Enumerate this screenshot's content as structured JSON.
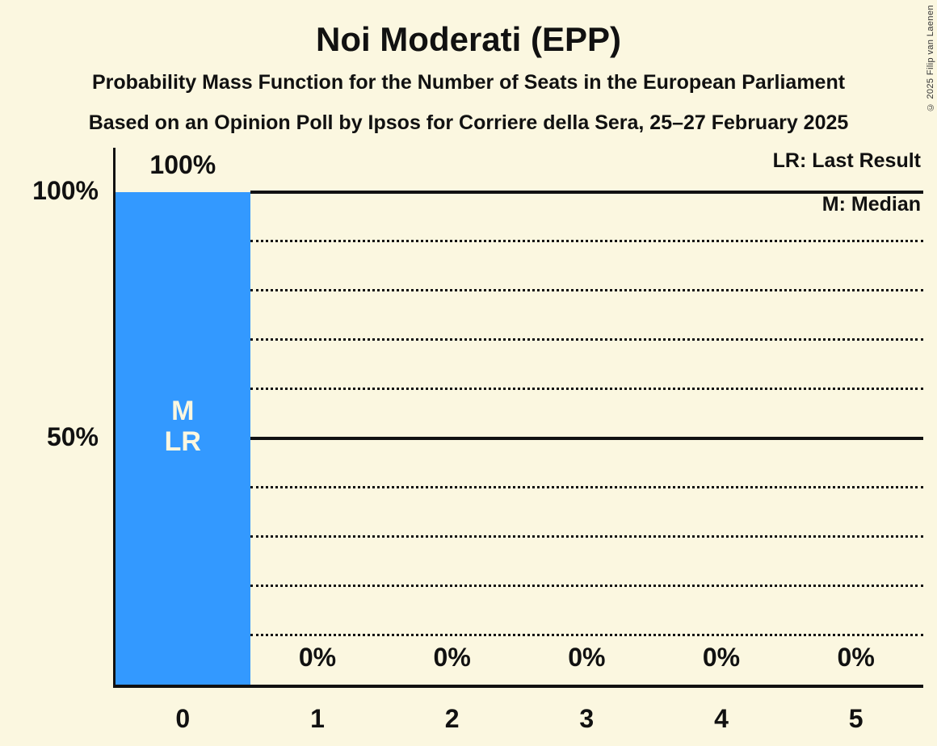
{
  "page": {
    "background_color": "#FBF7E0",
    "text_color": "#111111",
    "copyright": "© 2025 Filip van Laenen"
  },
  "header": {
    "title": "Noi Moderati (EPP)",
    "subtitle1": "Probability Mass Function for the Number of Seats in the European Parliament",
    "subtitle2": "Based on an Opinion Poll by Ipsos for Corriere della Sera, 25–27 February 2025"
  },
  "legend": {
    "lr_label": "LR: Last Result",
    "m_label": "M: Median"
  },
  "chart_data": {
    "type": "bar",
    "title": "Noi Moderati (EPP)",
    "categories": [
      "0",
      "1",
      "2",
      "3",
      "4",
      "5"
    ],
    "values": [
      100,
      0,
      0,
      0,
      0,
      0
    ],
    "value_labels": [
      "100%",
      "0%",
      "0%",
      "0%",
      "0%",
      "0%"
    ],
    "ylim": [
      0,
      100
    ],
    "y_axis_ticks": [
      {
        "level": 100,
        "label": "100%"
      },
      {
        "level": 50,
        "label": "50%"
      }
    ],
    "gridlines": [
      {
        "level": 100,
        "style": "solid"
      },
      {
        "level": 90,
        "style": "dotted"
      },
      {
        "level": 80,
        "style": "dotted"
      },
      {
        "level": 70,
        "style": "dotted"
      },
      {
        "level": 60,
        "style": "dotted"
      },
      {
        "level": 50,
        "style": "solid"
      },
      {
        "level": 40,
        "style": "dotted"
      },
      {
        "level": 30,
        "style": "dotted"
      },
      {
        "level": 20,
        "style": "dotted"
      },
      {
        "level": 10,
        "style": "dotted"
      }
    ],
    "bar_color": "#3399FF",
    "bar_label_color": "#FBF7E0",
    "annotations": [
      {
        "category": "0",
        "lines": [
          "M",
          "LR"
        ]
      }
    ],
    "legend_entries": [
      "LR: Last Result",
      "M: Median"
    ],
    "legend_position": "top-right",
    "grid": true
  }
}
